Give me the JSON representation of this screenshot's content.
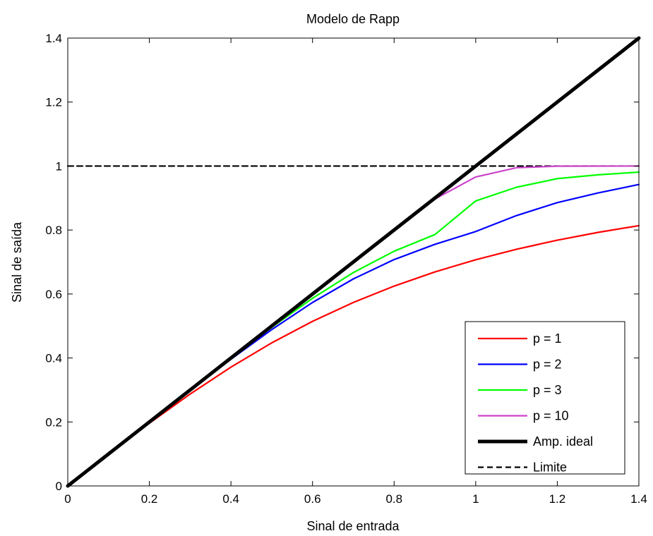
{
  "chart_data": {
    "type": "line",
    "title": "Modelo de Rapp",
    "xlabel": "Sinal de entrada",
    "ylabel": "Sinal de saída",
    "xlim": [
      0,
      1.4
    ],
    "ylim": [
      0,
      1.4
    ],
    "xticks": [
      0,
      0.2,
      0.4,
      0.6,
      0.8,
      1,
      1.2,
      1.4
    ],
    "xtick_labels": [
      "0",
      "0.2",
      "0.4",
      "0.6",
      "0.8",
      "1",
      "1.2",
      "1.4"
    ],
    "yticks": [
      0,
      0.2,
      0.4,
      0.6,
      0.8,
      1,
      1.2,
      1.4
    ],
    "ytick_labels": [
      "0",
      "0.2",
      "0.4",
      "0.6",
      "0.8",
      "1",
      "1.2",
      "1.4"
    ],
    "grid": false,
    "legend_position": "bottom-right",
    "x": [
      0,
      0.1,
      0.2,
      0.3,
      0.4,
      0.5,
      0.6,
      0.7,
      0.8,
      0.9,
      1.0,
      1.1,
      1.2,
      1.3,
      1.4
    ],
    "series": [
      {
        "name": "p = 1",
        "color": "#ff0000",
        "style": "solid",
        "width": "normal",
        "values": [
          0,
          0.0995,
          0.1961,
          0.2873,
          0.3714,
          0.4472,
          0.5145,
          0.5735,
          0.6247,
          0.669,
          0.7071,
          0.7399,
          0.7682,
          0.7926,
          0.8137
        ]
      },
      {
        "name": "p = 2",
        "color": "#0000ff",
        "style": "solid",
        "width": "normal",
        "values": [
          0,
          0.1,
          0.1999,
          0.299,
          0.3961,
          0.4887,
          0.5735,
          0.6471,
          0.7076,
          0.7553,
          0.7953,
          0.8452,
          0.8857,
          0.916,
          0.9423
        ]
      },
      {
        "name": "p = 3",
        "color": "#00ff00",
        "style": "solid",
        "width": "normal",
        "values": [
          0,
          0.1,
          0.2,
          0.2998,
          0.399,
          0.4959,
          0.5866,
          0.667,
          0.7338,
          0.7858,
          0.8909,
          0.9337,
          0.9607,
          0.9725,
          0.981
        ]
      },
      {
        "name": "p = 10",
        "color": "#cc44cc",
        "style": "solid",
        "width": "normal",
        "values": [
          0,
          0.1,
          0.2,
          0.3,
          0.4,
          0.5,
          0.6,
          0.7,
          0.7999,
          0.8968,
          0.9659,
          0.9948,
          0.9995,
          0.9999,
          1.0
        ]
      },
      {
        "name": "Amp. ideal",
        "color": "#000000",
        "style": "solid",
        "width": "thick",
        "values": [
          0,
          0.1,
          0.2,
          0.3,
          0.4,
          0.5,
          0.6,
          0.7,
          0.8,
          0.9,
          1.0,
          1.1,
          1.2,
          1.3,
          1.4
        ]
      },
      {
        "name": "Limite",
        "color": "#000000",
        "style": "dashed",
        "width": "normal",
        "values": [
          1,
          1,
          1,
          1,
          1,
          1,
          1,
          1,
          1,
          1,
          1,
          1,
          1,
          1,
          1
        ]
      }
    ]
  }
}
